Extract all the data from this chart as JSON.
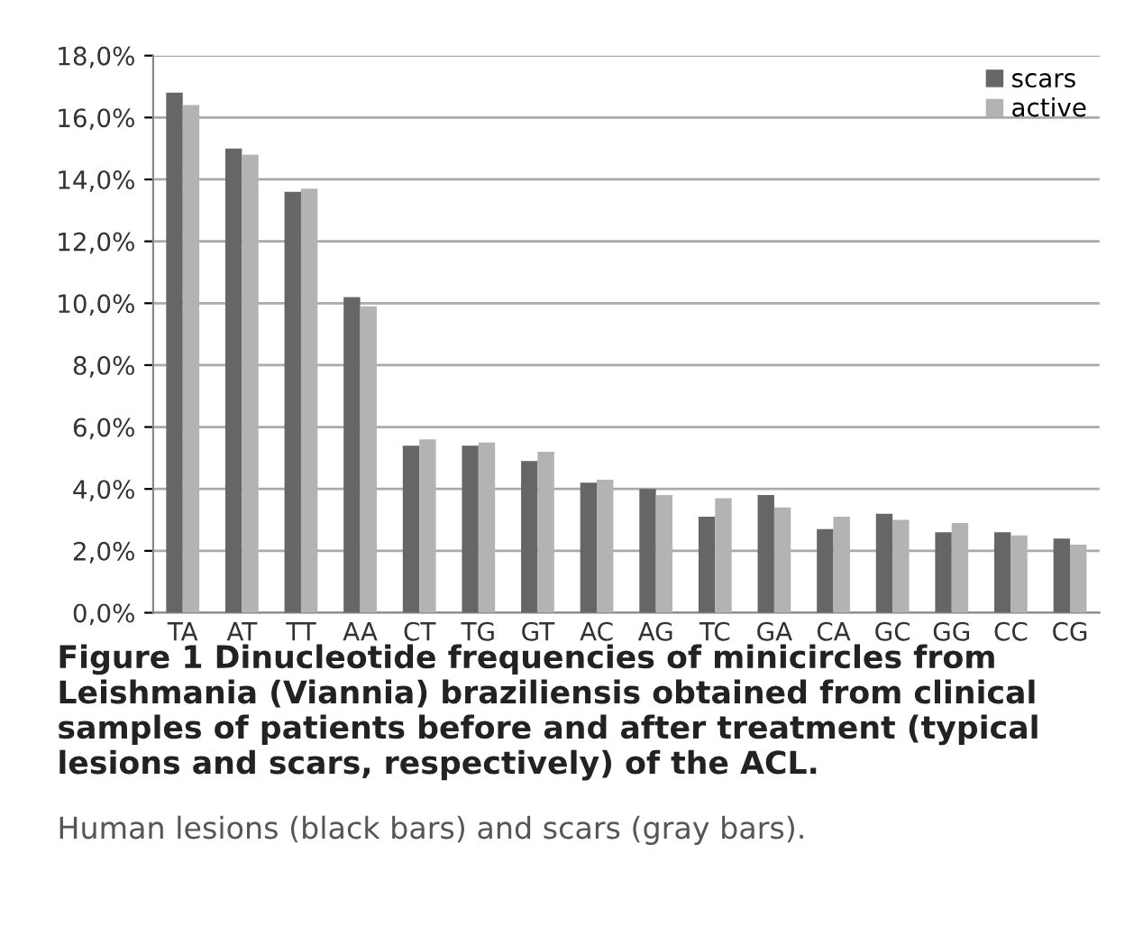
{
  "chart_data": {
    "type": "bar",
    "title": "Figure 1 Dinucleotide frequencies of minicircles from Leishmania (Viannia) braziliensis obtained from clinical samples of patients before and after treatment (typical lesions and scars, respectively) of the ACL.",
    "annotations": [
      "Human lesions (black bars) and scars (gray bars)."
    ],
    "categories": [
      "TA",
      "AT",
      "TT",
      "AA",
      "CT",
      "TG",
      "GT",
      "AC",
      "AG",
      "TC",
      "GA",
      "CA",
      "GC",
      "GG",
      "CC",
      "CG"
    ],
    "series": [
      {
        "name": "scars",
        "color": "#666666",
        "values": [
          16.8,
          15.0,
          13.6,
          10.2,
          5.4,
          5.4,
          4.9,
          4.2,
          4.0,
          3.1,
          3.8,
          2.7,
          3.2,
          2.6,
          2.6,
          2.4
        ]
      },
      {
        "name": "active",
        "color": "#b3b3b3",
        "values": [
          16.4,
          14.8,
          13.7,
          9.9,
          5.6,
          5.5,
          5.2,
          4.3,
          3.8,
          3.7,
          3.4,
          3.1,
          3.0,
          2.9,
          2.5,
          2.2
        ]
      }
    ],
    "ylim": [
      0,
      18
    ],
    "yticks": [
      {
        "value": 0,
        "label": "0,0%"
      },
      {
        "value": 2,
        "label": "2,0%"
      },
      {
        "value": 4,
        "label": "4,0%"
      },
      {
        "value": 6,
        "label": "6,0%"
      },
      {
        "value": 8,
        "label": "8,0%"
      },
      {
        "value": 10,
        "label": "10,0%"
      },
      {
        "value": 12,
        "label": "12,0%"
      },
      {
        "value": 14,
        "label": "14,0%"
      },
      {
        "value": 16,
        "label": "16,0%"
      },
      {
        "value": 18,
        "label": "18,0%"
      }
    ],
    "grid": "y",
    "legend": "top right"
  }
}
